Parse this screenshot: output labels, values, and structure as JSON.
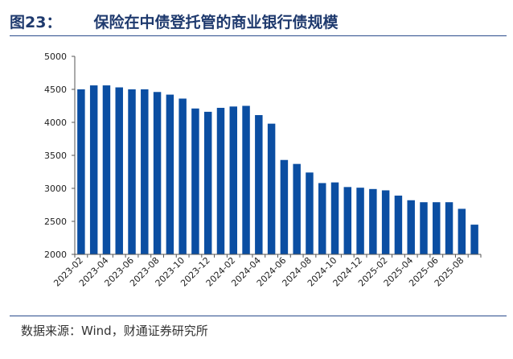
{
  "header": {
    "figure_number": "图23：",
    "title": "保险在中债登托管的商业银行债规模"
  },
  "source": "数据来源：Wind，财通证券研究所",
  "colors": {
    "bar": "#0b4ea2",
    "title": "#1f3a6e",
    "rule": "#2b4c8c"
  },
  "chart_data": {
    "type": "bar",
    "title": "保险在中债登托管的商业银行债规模",
    "xlabel": "",
    "ylabel": "",
    "ylim": [
      2000,
      5000
    ],
    "yticks": [
      2000,
      2500,
      3000,
      3500,
      4000,
      4500,
      5000
    ],
    "grid": false,
    "legend": "none",
    "categories": [
      "2023-02",
      "2023-03",
      "2023-04",
      "2023-05",
      "2023-06",
      "2023-07",
      "2023-08",
      "2023-09",
      "2023-10",
      "2023-11",
      "2023-12",
      "2024-01",
      "2024-02",
      "2024-03",
      "2024-04",
      "2024-05",
      "2024-06",
      "2024-07",
      "2024-08",
      "2024-09",
      "2024-10",
      "2024-11",
      "2024-12",
      "2025-01",
      "2025-02",
      "2025-03",
      "2025-04",
      "2025-05",
      "2025-06",
      "2025-07",
      "2025-08",
      "2025-09"
    ],
    "tick_labels": [
      "2023-02",
      "2023-04",
      "2023-06",
      "2023-08",
      "2023-10",
      "2023-12",
      "2024-02",
      "2024-04",
      "2024-06",
      "2024-08",
      "2024-10",
      "2024-12",
      "2025-02",
      "2025-04",
      "2025-06",
      "2025-08"
    ],
    "values": [
      4500,
      4560,
      4560,
      4530,
      4500,
      4500,
      4460,
      4420,
      4360,
      4210,
      4160,
      4220,
      4240,
      4250,
      4110,
      3980,
      3430,
      3370,
      3240,
      3080,
      3090,
      3020,
      3010,
      2990,
      2970,
      2890,
      2820,
      2790,
      2790,
      2790,
      2690,
      2450
    ]
  }
}
